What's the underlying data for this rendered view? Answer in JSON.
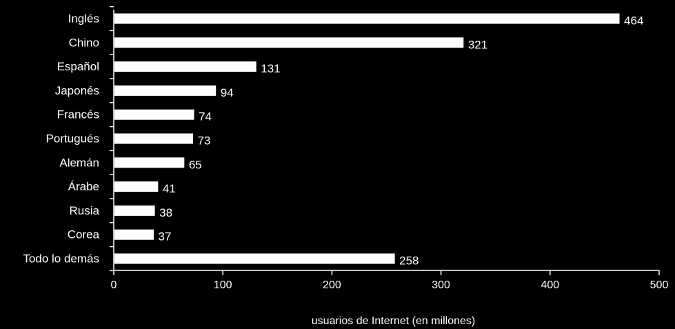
{
  "chart_data": {
    "type": "bar",
    "orientation": "horizontal",
    "categories": [
      "Inglés",
      "Chino",
      "Español",
      "Japonés",
      "Francés",
      "Portugués",
      "Alemán",
      "Árabe",
      "Rusia",
      "Corea",
      "Todo lo demás"
    ],
    "values": [
      464,
      321,
      131,
      94,
      74,
      73,
      65,
      41,
      38,
      37,
      258
    ],
    "data_labels": [
      "464",
      "321",
      "131",
      "94",
      "74",
      "73",
      "65",
      "41",
      "38",
      "37",
      "258"
    ],
    "x_ticks": [
      "0",
      "100",
      "200",
      "300",
      "400",
      "500"
    ],
    "xlim": [
      0,
      500
    ],
    "xlabel": "usuarios de Internet (en millones)",
    "title": "",
    "grid": false,
    "colors": {
      "background": "#000000",
      "bar": "#ffffff",
      "bar_outline": "#000000",
      "axis": "#ffffff",
      "text": "#ffffff"
    }
  }
}
